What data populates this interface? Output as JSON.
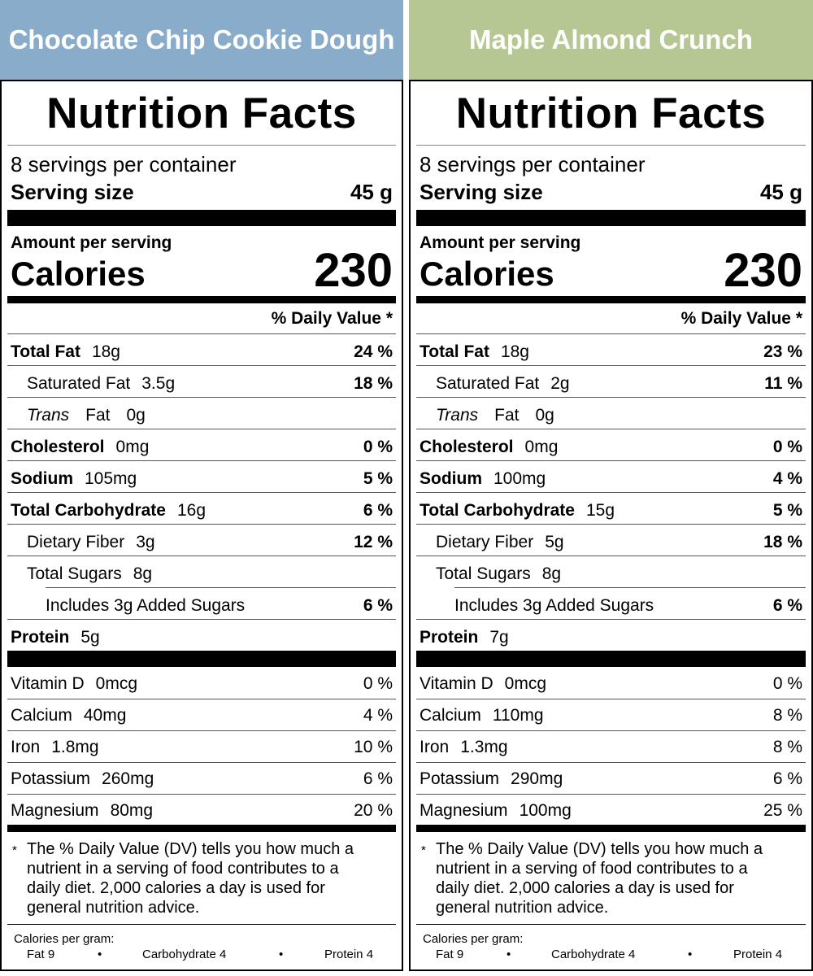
{
  "products": [
    {
      "name": "Chocolate Chip Cookie Dough",
      "header_color": "#8aaccb",
      "title": "Nutrition Facts",
      "servings": "8 servings per container",
      "serving_size_label": "Serving size",
      "serving_size": "45 g",
      "amount_label": "Amount per serving",
      "calories_label": "Calories",
      "calories": "230",
      "dv_header": "% Daily Value *",
      "rows": [
        {
          "label": "Total Fat",
          "amount": "18g",
          "dv": "24 %"
        },
        {
          "label": "Saturated Fat",
          "amount": "3.5g",
          "dv": "18 %"
        },
        {
          "label": "Trans",
          "label2": "Fat",
          "amount": "0g",
          "dv": ""
        },
        {
          "label": "Cholesterol",
          "amount": "0mg",
          "dv": "0 %"
        },
        {
          "label": "Sodium",
          "amount": "105mg",
          "dv": "5 %"
        },
        {
          "label": "Total Carbohydrate",
          "amount": "16g",
          "dv": "6 %"
        },
        {
          "label": "Dietary Fiber",
          "amount": "3g",
          "dv": "12 %"
        },
        {
          "label": "Total Sugars",
          "amount": "8g",
          "dv": ""
        },
        {
          "label": "Includes 3g Added Sugars",
          "amount": "",
          "dv": "6 %"
        },
        {
          "label": "Protein",
          "amount": "5g",
          "dv": ""
        }
      ],
      "vitamins": [
        {
          "label": "Vitamin D",
          "amount": "0mcg",
          "dv": "0 %"
        },
        {
          "label": "Calcium",
          "amount": "40mg",
          "dv": "4 %"
        },
        {
          "label": "Iron",
          "amount": "1.8mg",
          "dv": "10 %"
        },
        {
          "label": "Potassium",
          "amount": "260mg",
          "dv": "6 %"
        },
        {
          "label": "Magnesium",
          "amount": "80mg",
          "dv": "20 %"
        }
      ],
      "footnote_star": "*",
      "footnote": [
        "The % Daily Value (DV) tells you how much a",
        "nutrient in a serving of food contributes to a",
        "daily diet. 2,000 calories a day is used for",
        "general nutrition advice."
      ],
      "cal_per_gram_label": "Calories per gram:",
      "cal_fat": "Fat 9",
      "cal_carb": "Carbohydrate 4",
      "cal_protein": "Protein 4",
      "bullet": "•"
    },
    {
      "name": "Maple Almond Crunch",
      "header_color": "#b7c793",
      "title": "Nutrition Facts",
      "servings": "8 servings per container",
      "serving_size_label": "Serving size",
      "serving_size": "45 g",
      "amount_label": "Amount per serving",
      "calories_label": "Calories",
      "calories": "230",
      "dv_header": "% Daily Value *",
      "rows": [
        {
          "label": "Total Fat",
          "amount": "18g",
          "dv": "23 %"
        },
        {
          "label": "Saturated Fat",
          "amount": "2g",
          "dv": "11 %"
        },
        {
          "label": "Trans",
          "label2": "Fat",
          "amount": "0g",
          "dv": ""
        },
        {
          "label": "Cholesterol",
          "amount": "0mg",
          "dv": "0 %"
        },
        {
          "label": "Sodium",
          "amount": "100mg",
          "dv": "4 %"
        },
        {
          "label": "Total Carbohydrate",
          "amount": "15g",
          "dv": "5 %"
        },
        {
          "label": "Dietary Fiber",
          "amount": "5g",
          "dv": "18 %"
        },
        {
          "label": "Total Sugars",
          "amount": "8g",
          "dv": ""
        },
        {
          "label": "Includes 3g Added Sugars",
          "amount": "",
          "dv": "6 %"
        },
        {
          "label": "Protein",
          "amount": "7g",
          "dv": ""
        }
      ],
      "vitamins": [
        {
          "label": "Vitamin D",
          "amount": "0mcg",
          "dv": "0 %"
        },
        {
          "label": "Calcium",
          "amount": "110mg",
          "dv": "8 %"
        },
        {
          "label": "Iron",
          "amount": "1.3mg",
          "dv": "8 %"
        },
        {
          "label": "Potassium",
          "amount": "290mg",
          "dv": "6 %"
        },
        {
          "label": "Magnesium",
          "amount": "100mg",
          "dv": "25 %"
        }
      ],
      "footnote_star": "*",
      "footnote": [
        "The % Daily Value (DV) tells you how much a",
        "nutrient in a serving of food contributes to a",
        "daily diet. 2,000 calories a day is used for",
        "general nutrition advice."
      ],
      "cal_per_gram_label": "Calories per gram:",
      "cal_fat": "Fat 9",
      "cal_carb": "Carbohydrate 4",
      "cal_protein": "Protein 4",
      "bullet": "•"
    }
  ]
}
